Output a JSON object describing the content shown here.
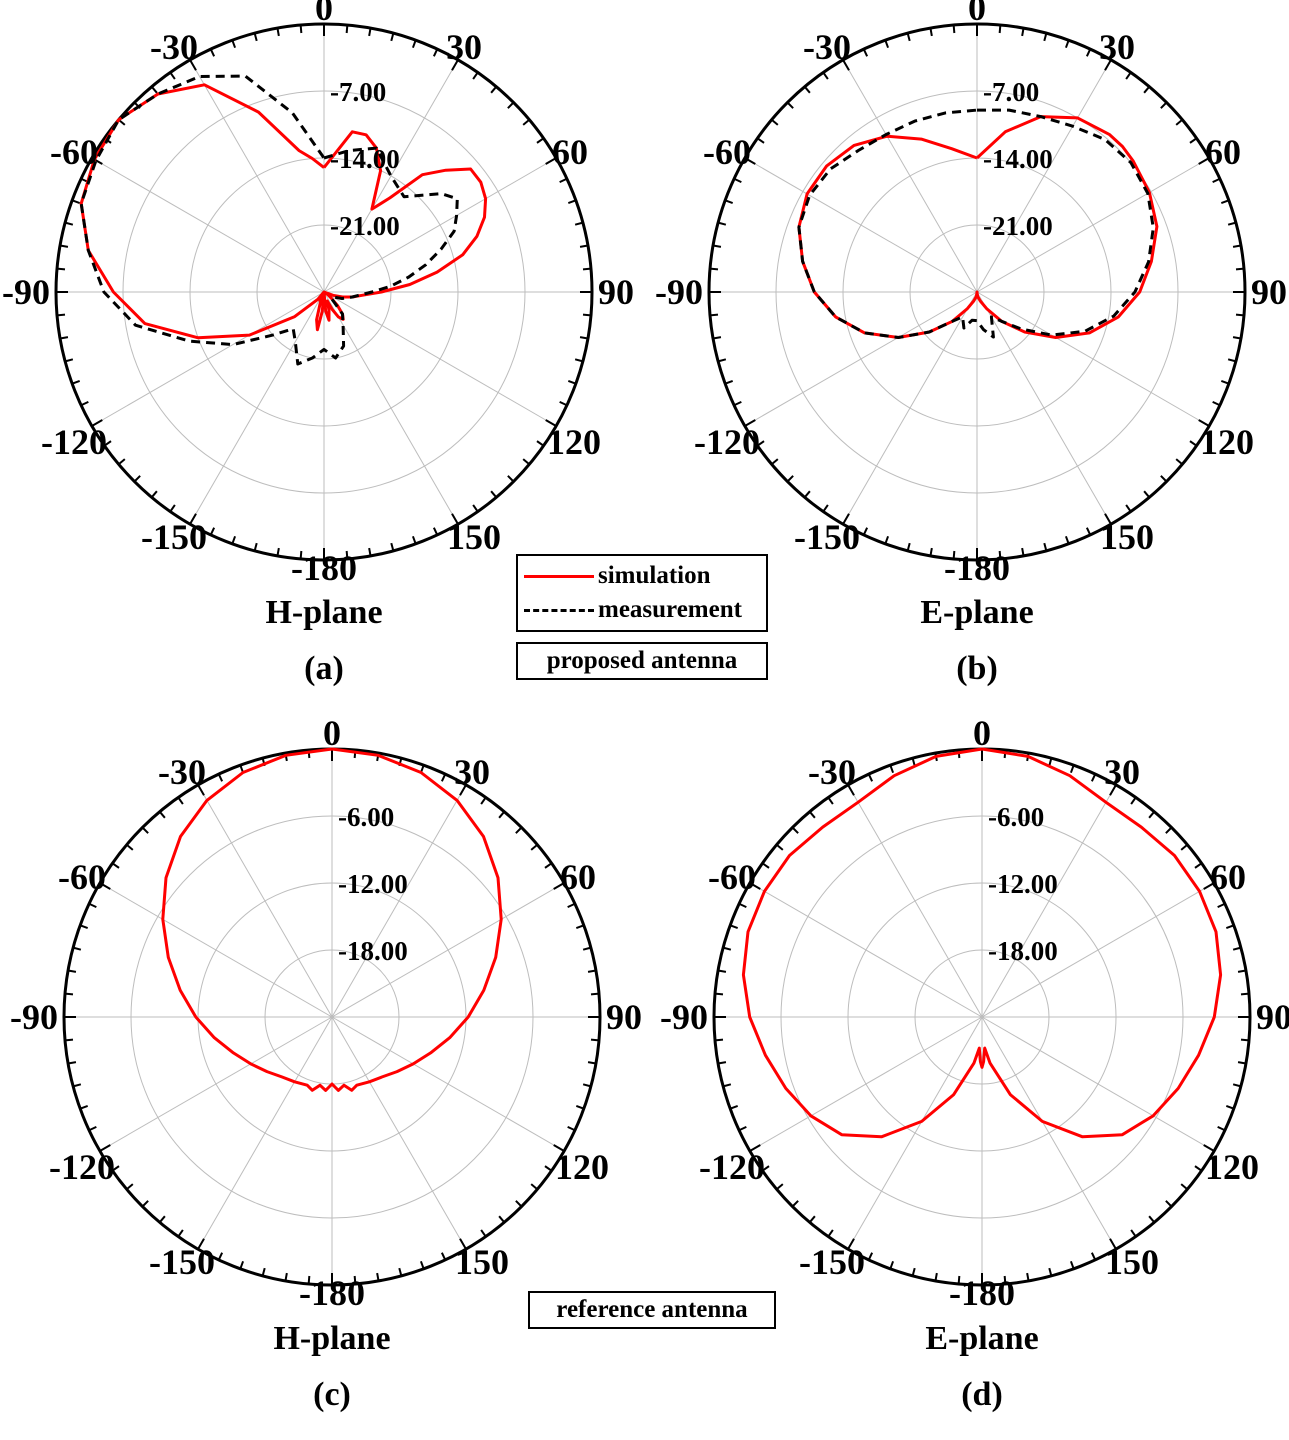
{
  "colors": {
    "simulation": "#ff0000",
    "measurement": "#000000",
    "grid": "#bdbdbd",
    "frame": "#000000"
  },
  "legend": {
    "simulation_label": "simulation",
    "measurement_label": "measurement",
    "proposed_label": "proposed antenna",
    "reference_label": "reference antenna"
  },
  "chart_data": [
    {
      "type": "polar",
      "panel": "(a)",
      "plane": "H-plane",
      "angle_ticks": [
        "0",
        "30",
        "60",
        "90",
        "120",
        "150",
        "-180",
        "-150",
        "-120",
        "-90",
        "-60",
        "-30"
      ],
      "radial_ticks": [
        "-7.00",
        "-14.00",
        "-21.00"
      ],
      "rlim": [
        -28,
        0
      ],
      "series": [
        {
          "name": "simulation",
          "style": "solid",
          "angle": [
            0,
            10,
            15,
            20,
            25,
            30,
            35,
            40,
            45,
            50,
            55,
            60,
            65,
            70,
            75,
            80,
            85,
            90,
            95,
            100,
            105,
            110,
            115,
            120,
            125,
            130,
            135,
            140,
            145,
            150,
            155,
            160,
            165,
            170,
            175,
            180,
            185,
            190,
            195,
            200,
            205,
            210,
            220,
            230,
            240,
            250,
            260,
            270,
            280,
            290,
            300,
            310,
            320,
            330,
            340,
            350,
            355,
            360
          ],
          "gain_db": [
            -15,
            -11,
            -11,
            -12,
            -14,
            -18,
            -16,
            -12,
            -10,
            -8,
            -8,
            -8.5,
            -9.5,
            -11,
            -13,
            -16,
            -19,
            -22,
            -24,
            -25,
            -26,
            -27,
            -28,
            -28,
            -27.5,
            -27,
            -26,
            -25,
            -24.5,
            -25,
            -26,
            -27,
            -26,
            -25,
            -26,
            -28,
            -26,
            -24,
            -25,
            -27,
            -27,
            -28,
            -27,
            -24,
            -19,
            -14,
            -9,
            -6,
            -3,
            -1,
            -0.3,
            0,
            -1,
            -3,
            -8,
            -13,
            -14,
            -15
          ]
        },
        {
          "name": "measurement",
          "style": "dashed",
          "angle": [
            0,
            10,
            20,
            30,
            40,
            50,
            55,
            60,
            65,
            70,
            75,
            80,
            85,
            90,
            100,
            110,
            120,
            130,
            140,
            150,
            160,
            170,
            180,
            190,
            200,
            210,
            220,
            230,
            240,
            250,
            260,
            270,
            280,
            290,
            300,
            310,
            320,
            330,
            340,
            350,
            360
          ],
          "gain_db": [
            -14,
            -13,
            -12,
            -14,
            -15,
            -12,
            -11,
            -12,
            -13,
            -15,
            -17,
            -19,
            -21,
            -23,
            -25,
            -26,
            -27,
            -27,
            -25,
            -24,
            -22,
            -21,
            -22,
            -21,
            -20,
            -22,
            -23,
            -21,
            -17,
            -13,
            -8,
            -5,
            -3,
            -1,
            -0.5,
            0,
            -1,
            -2,
            -4,
            -9,
            -14
          ]
        }
      ]
    },
    {
      "type": "polar",
      "panel": "(b)",
      "plane": "E-plane",
      "angle_ticks": [
        "0",
        "30",
        "60",
        "90",
        "120",
        "150",
        "-180",
        "-150",
        "-120",
        "-90",
        "-60",
        "-30"
      ],
      "radial_ticks": [
        "-7.00",
        "-14.00",
        "-21.00"
      ],
      "rlim": [
        -28,
        0
      ],
      "series": [
        {
          "name": "simulation",
          "style": "solid",
          "angle": [
            0,
            10,
            20,
            30,
            40,
            45,
            50,
            60,
            70,
            80,
            90,
            100,
            110,
            120,
            130,
            140,
            150,
            160,
            170,
            175,
            180,
            185,
            190,
            200,
            210,
            220,
            230,
            240,
            250,
            260,
            270,
            280,
            290,
            300,
            310,
            320,
            330,
            340,
            350,
            360
          ],
          "gain_db": [
            -14,
            -11,
            -8.5,
            -7,
            -6.5,
            -6.5,
            -6.7,
            -7.2,
            -8,
            -9.5,
            -11,
            -13,
            -15.5,
            -18.5,
            -21.5,
            -24,
            -26,
            -27,
            -27.5,
            -27.8,
            -28,
            -27.8,
            -27.5,
            -27,
            -26,
            -24,
            -21.5,
            -18.5,
            -15.5,
            -13,
            -11,
            -9.5,
            -8.2,
            -7.5,
            -7.5,
            -8,
            -9.2,
            -11,
            -12.8,
            -14
          ]
        },
        {
          "name": "measurement",
          "style": "dashed",
          "angle": [
            0,
            10,
            20,
            30,
            40,
            50,
            60,
            70,
            80,
            90,
            100,
            110,
            120,
            130,
            140,
            150,
            160,
            170,
            180,
            190,
            200,
            210,
            220,
            230,
            240,
            250,
            260,
            270,
            280,
            290,
            300,
            310,
            320,
            330,
            340,
            350,
            360
          ],
          "gain_db": [
            -9,
            -8.7,
            -8.5,
            -8,
            -7.2,
            -7,
            -7.4,
            -8.4,
            -9.8,
            -11.5,
            -13.5,
            -16,
            -19,
            -22,
            -24,
            -25,
            -23,
            -24,
            -25,
            -25,
            -24,
            -25,
            -24,
            -21.5,
            -18.5,
            -15.5,
            -13,
            -11,
            -9.5,
            -8.2,
            -7.8,
            -8,
            -8.7,
            -9,
            -9,
            -9,
            -9
          ]
        }
      ]
    },
    {
      "type": "polar",
      "panel": "(c)",
      "plane": "H-plane",
      "angle_ticks": [
        "0",
        "30",
        "60",
        "90",
        "120",
        "150",
        "-180",
        "-150",
        "-120",
        "-90",
        "-60",
        "-30"
      ],
      "radial_ticks": [
        "-6.00",
        "-12.00",
        "-18.00"
      ],
      "rlim": [
        -24,
        0
      ],
      "series": [
        {
          "name": "simulation",
          "style": "solid",
          "angle": [
            0,
            10,
            20,
            30,
            40,
            50,
            60,
            70,
            80,
            90,
            100,
            110,
            120,
            130,
            140,
            150,
            160,
            165,
            170,
            175,
            180,
            185,
            190,
            195,
            200,
            210,
            220,
            230,
            240,
            250,
            260,
            270,
            280,
            290,
            300,
            310,
            320,
            330,
            340,
            350,
            360
          ],
          "gain_db": [
            0,
            -0.2,
            -0.7,
            -1.6,
            -2.9,
            -4.6,
            -6.5,
            -8.4,
            -10.2,
            -11.8,
            -13.3,
            -14.6,
            -15.6,
            -16.4,
            -17,
            -17.3,
            -17.5,
            -17.2,
            -17.8,
            -17.4,
            -18,
            -17.4,
            -17.8,
            -17.2,
            -17.5,
            -17.3,
            -17,
            -16.4,
            -15.6,
            -14.6,
            -13.3,
            -11.8,
            -10.2,
            -8.4,
            -6.5,
            -4.6,
            -2.9,
            -1.6,
            -0.7,
            -0.2,
            0
          ]
        }
      ]
    },
    {
      "type": "polar",
      "panel": "(d)",
      "plane": "E-plane",
      "angle_ticks": [
        "0",
        "30",
        "60",
        "90",
        "120",
        "150",
        "-180",
        "-150",
        "-120",
        "-90",
        "-60",
        "-30"
      ],
      "radial_ticks": [
        "-6.00",
        "-12.00",
        "-18.00"
      ],
      "rlim": [
        -24,
        0
      ],
      "series": [
        {
          "name": "simulation",
          "style": "solid",
          "angle": [
            0,
            10,
            20,
            30,
            40,
            50,
            60,
            70,
            80,
            90,
            100,
            110,
            120,
            130,
            140,
            150,
            160,
            170,
            175,
            178,
            180,
            182,
            185,
            190,
            200,
            210,
            220,
            230,
            240,
            250,
            260,
            270,
            280,
            290,
            300,
            310,
            320,
            330,
            340,
            350,
            360
          ],
          "gain_db": [
            0,
            -0.3,
            -1,
            -1.8,
            -1.8,
            -1.5,
            -1.5,
            -1.7,
            -2.3,
            -3.2,
            -4.3,
            -5.3,
            -6.3,
            -7.6,
            -10,
            -13.2,
            -16.6,
            -19.8,
            -21.2,
            -20,
            -19.5,
            -20,
            -21.2,
            -19.8,
            -16.6,
            -13.2,
            -10,
            -7.6,
            -6.3,
            -5.3,
            -4.3,
            -3.2,
            -2.3,
            -1.7,
            -1.5,
            -1.5,
            -1.8,
            -1.8,
            -1,
            -0.3,
            0
          ]
        }
      ]
    }
  ]
}
